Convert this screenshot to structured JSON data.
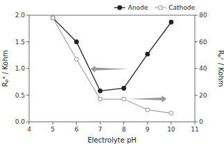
{
  "chart_data": {
    "type": "line",
    "xlabel": "Electrolyte pH",
    "ylabel": "Rₚᵃ / Kohm",
    "y2label": "Rₚᶜ / Kohm",
    "x": [
      5,
      6,
      7,
      8,
      9,
      10
    ],
    "series": [
      {
        "name": "Anode",
        "color": "#222222",
        "marker": "circle",
        "values": [
          1.95,
          1.5,
          0.58,
          0.63,
          1.27,
          1.87
        ]
      },
      {
        "name": "Cathode",
        "color": "#aaaaaa",
        "marker": "open-circle",
        "axis": "y2",
        "values": [
          78,
          47,
          17,
          17,
          9,
          6.5
        ]
      }
    ],
    "xlim": [
      4,
      11
    ],
    "xticks": [
      4,
      5,
      6,
      7,
      8,
      9,
      10,
      11
    ],
    "ylim": [
      0.0,
      2.0
    ],
    "yticks": [
      {
        "value": 0,
        "label": "0.0"
      },
      0.5,
      {
        "value": 1,
        "label": "1.0"
      },
      1.5,
      {
        "value": 2,
        "label": "2.0"
      }
    ],
    "y2lim": [
      0,
      80
    ],
    "y2ticks": [
      0,
      20,
      40,
      60,
      80
    ],
    "legend": "upper right",
    "grid": false
  }
}
